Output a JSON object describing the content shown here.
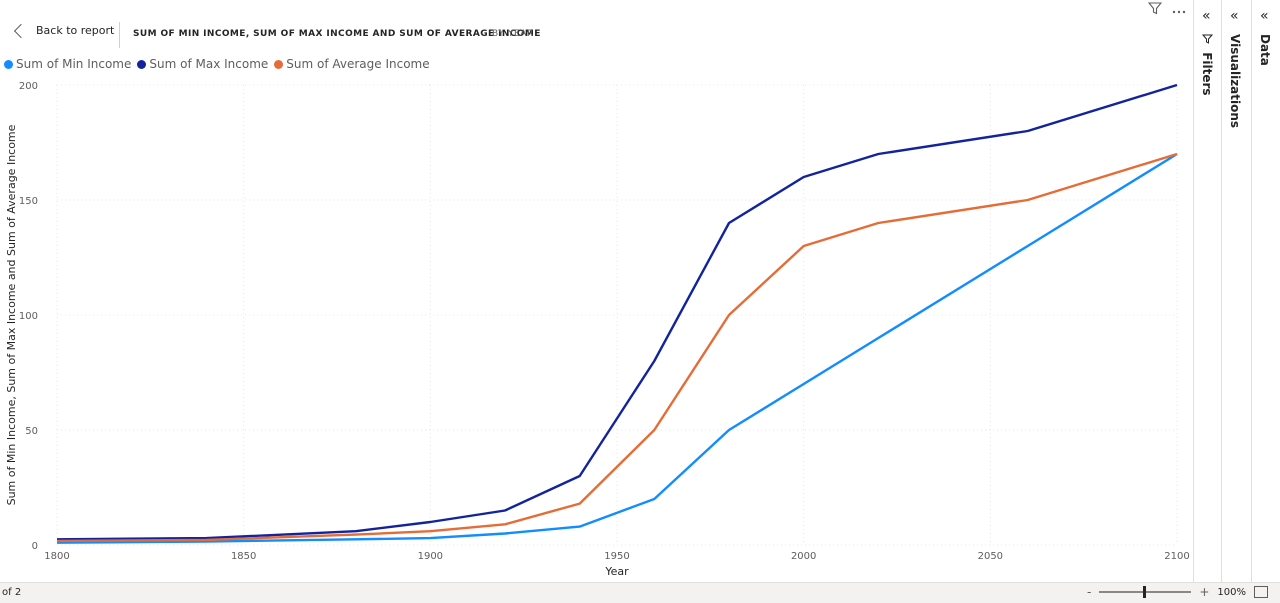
{
  "header": {
    "back_label": "Back to report",
    "title": "SUM OF MIN INCOME, SUM OF MAX INCOME AND SUM OF AVERAGE INCOME",
    "subtitle": "BY YEAR"
  },
  "panes": {
    "filters": "Filters",
    "visualizations": "Visualizations",
    "data": "Data"
  },
  "status": {
    "page_of": "of 2",
    "zoom_minus": "-",
    "zoom_plus": "+",
    "zoom_level": "100%"
  },
  "colors": {
    "min": "#118dff",
    "max": "#12239e",
    "avg": "#e66c37"
  },
  "chart_data": {
    "type": "line",
    "xlabel": "Year",
    "ylabel": "Sum of Min Income, Sum of Max Income and Sum of Average Income",
    "xlim": [
      1800,
      2100
    ],
    "ylim": [
      0,
      200
    ],
    "xticks": [
      "1800",
      "1850",
      "1900",
      "1950",
      "2000",
      "2050",
      "2100"
    ],
    "yticks": [
      "0",
      "50",
      "100",
      "150",
      "200"
    ],
    "grid": true,
    "legend_position": "top-left",
    "x": [
      1800,
      1840,
      1880,
      1900,
      1920,
      1940,
      1960,
      1980,
      2000,
      2020,
      2060,
      2100
    ],
    "series": [
      {
        "name": "Sum of Min Income",
        "color": "#118dff",
        "values": [
          1,
          1.5,
          2.5,
          3,
          5,
          8,
          20,
          50,
          70,
          90,
          130,
          170
        ]
      },
      {
        "name": "Sum of Max Income",
        "color": "#12239e",
        "values": [
          2.5,
          3,
          6,
          10,
          15,
          30,
          80,
          140,
          160,
          170,
          180,
          200
        ]
      },
      {
        "name": "Sum of Average Income",
        "color": "#e66c37",
        "values": [
          1.8,
          2.2,
          4.5,
          6,
          9,
          18,
          50,
          100,
          130,
          140,
          150,
          170
        ]
      }
    ]
  }
}
